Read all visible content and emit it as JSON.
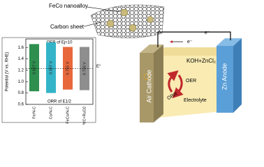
{
  "chart_data": {
    "type": "range-bar",
    "y_label": "Potential (V vs. RHE)",
    "top_label": "OER of Ej=10",
    "bottom_label": "ORR of E1/2",
    "categories": [
      "Fe/N-C",
      "Co/N-C",
      "FeCo/N-C",
      "Pt/C+RuO2"
    ],
    "colors": [
      "#2f8f4e",
      "#34b4c8",
      "#e8683c",
      "#8e8e8e"
    ],
    "series": [
      {
        "name": "ORR of E1/2",
        "values": [
          0.83,
          0.8,
          0.86,
          0.85
        ]
      },
      {
        "name": "OER of Ej=10",
        "values": [
          1.66,
          1.69,
          1.61,
          1.61
        ]
      }
    ],
    "gaps": {
      "values": [
        0.827,
        0.887,
        0.755,
        0.758
      ],
      "value_labels": [
        "0.827 V",
        "0.887 V",
        "0.755 V",
        "0.758 V"
      ]
    },
    "reference_line": {
      "value": 1.23,
      "label": "E°"
    },
    "ylim": [
      0.6,
      1.75
    ],
    "yticks": [
      {
        "value": 0.6,
        "label": "0.6"
      },
      {
        "value": 0.8,
        "label": "0.8"
      },
      {
        "value": 1.0,
        "label": "1.0"
      },
      {
        "value": 1.2,
        "label": "1.2"
      },
      {
        "value": 1.4,
        "label": "1.4"
      },
      {
        "value": 1.6,
        "label": "1.6"
      }
    ]
  },
  "diagram": {
    "nanoalloy_label": "FeCo nanoalloy",
    "carbon_label": "Carbon sheet",
    "electron_left": "e⁻",
    "electron_right": "e⁻",
    "electrolyte_formula": "KOH+ZnCl₂",
    "cathode": "Air Cathode",
    "anode": "Zn Anode",
    "oer": "OER",
    "orr": "ORR",
    "electrolyte": "Electrolyte"
  }
}
